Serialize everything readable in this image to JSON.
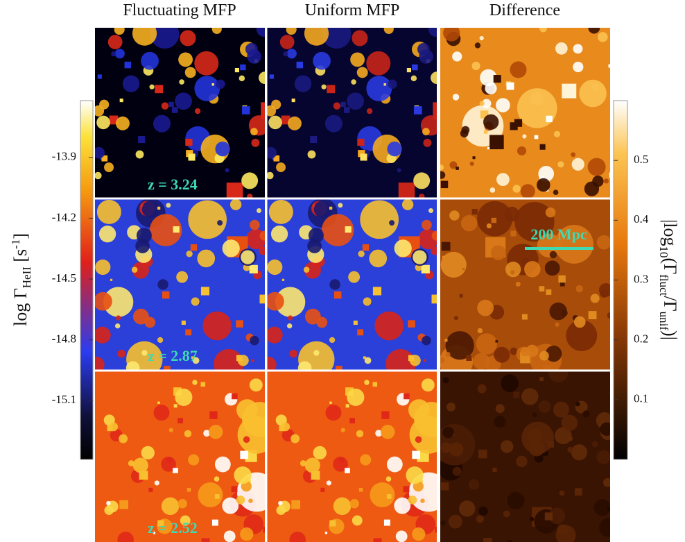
{
  "columns": [
    "Fluctuating MFP",
    "Uniform MFP",
    "Difference"
  ],
  "rows": [
    {
      "z": "z = 3.24"
    },
    {
      "z": "z = 2.87"
    },
    {
      "z": "z = 2.52"
    }
  ],
  "scale_bar": "200 Mpc",
  "left_colorbar": {
    "label": {
      "prefix": "log Γ",
      "sub": "HeII",
      "unit": " [s",
      "sup": "-1",
      "close": "]"
    },
    "lim": [
      -15.39,
      -13.62
    ],
    "ticks": [
      -13.9,
      -14.2,
      -14.5,
      -14.8,
      -15.1
    ]
  },
  "right_colorbar": {
    "label": {
      "open": "|log",
      "sub1": "10",
      "mid": "(Γ",
      "sub2": "fluct",
      "slash": "/Γ",
      "sub3": "unif",
      "close": ")|"
    },
    "lim": [
      0,
      0.6
    ],
    "ticks": [
      0.5,
      0.4,
      0.3,
      0.2,
      0.1
    ]
  }
}
